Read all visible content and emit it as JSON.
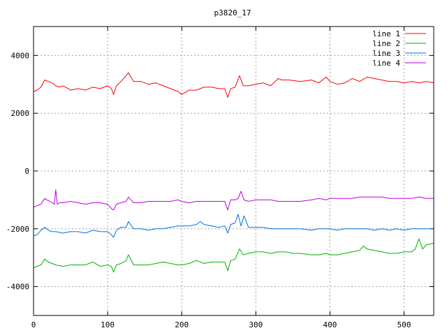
{
  "chart_data": {
    "type": "line",
    "title": "p3820_17",
    "xlabel": "",
    "ylabel": "",
    "xlim": [
      0,
      540
    ],
    "ylim": [
      -5000,
      5000
    ],
    "x_ticks": [
      0,
      100,
      200,
      300,
      400,
      500
    ],
    "y_ticks": [
      -4000,
      -2000,
      0,
      2000,
      4000
    ],
    "grid": true,
    "legend_position": "top-right",
    "series": [
      {
        "name": "line 1",
        "color": "#ff0000",
        "x": [
          0,
          5,
          10,
          15,
          20,
          25,
          30,
          35,
          40,
          50,
          60,
          70,
          80,
          90,
          100,
          105,
          108,
          112,
          118,
          125,
          128,
          135,
          145,
          155,
          165,
          175,
          185,
          195,
          200,
          210,
          220,
          230,
          240,
          250,
          258,
          262,
          266,
          272,
          278,
          283,
          290,
          300,
          310,
          320,
          330,
          335,
          345,
          360,
          375,
          385,
          395,
          400,
          410,
          420,
          430,
          440,
          450,
          460,
          470,
          480,
          490,
          500,
          510,
          520,
          530,
          540
        ],
        "y": [
          2750,
          2800,
          2900,
          3150,
          3100,
          3050,
          2950,
          2900,
          2950,
          2800,
          2850,
          2800,
          2900,
          2850,
          2950,
          2850,
          2650,
          2950,
          3100,
          3300,
          3400,
          3100,
          3100,
          3000,
          3050,
          2950,
          2850,
          2750,
          2650,
          2800,
          2800,
          2900,
          2900,
          2850,
          2850,
          2550,
          2850,
          2900,
          3300,
          2950,
          2950,
          3000,
          3050,
          2950,
          3200,
          3150,
          3150,
          3100,
          3150,
          3050,
          3250,
          3100,
          3000,
          3050,
          3200,
          3100,
          3250,
          3200,
          3150,
          3100,
          3100,
          3050,
          3100,
          3050,
          3100,
          3050
        ]
      },
      {
        "name": "line 2",
        "color": "#00b000",
        "x": [
          0,
          5,
          10,
          15,
          20,
          25,
          30,
          40,
          50,
          60,
          70,
          80,
          90,
          100,
          105,
          108,
          112,
          118,
          125,
          128,
          135,
          145,
          155,
          165,
          175,
          185,
          195,
          200,
          210,
          220,
          230,
          240,
          250,
          258,
          262,
          266,
          272,
          278,
          283,
          290,
          300,
          310,
          320,
          330,
          340,
          350,
          360,
          375,
          385,
          395,
          400,
          410,
          420,
          430,
          440,
          445,
          450,
          460,
          470,
          480,
          490,
          500,
          510,
          515,
          520,
          525,
          530,
          540
        ],
        "y": [
          -3350,
          -3300,
          -3250,
          -3050,
          -3150,
          -3200,
          -3250,
          -3300,
          -3250,
          -3250,
          -3250,
          -3150,
          -3300,
          -3250,
          -3300,
          -3500,
          -3250,
          -3200,
          -3100,
          -2900,
          -3250,
          -3250,
          -3250,
          -3200,
          -3150,
          -3200,
          -3250,
          -3250,
          -3200,
          -3100,
          -3200,
          -3150,
          -3150,
          -3150,
          -3450,
          -3100,
          -3050,
          -2700,
          -2900,
          -2850,
          -2800,
          -2800,
          -2850,
          -2800,
          -2800,
          -2850,
          -2850,
          -2900,
          -2900,
          -2850,
          -2900,
          -2900,
          -2850,
          -2800,
          -2750,
          -2600,
          -2700,
          -2750,
          -2800,
          -2850,
          -2850,
          -2800,
          -2800,
          -2700,
          -2350,
          -2700,
          -2550,
          -2500
        ]
      },
      {
        "name": "line 3",
        "color": "#0070e0",
        "x": [
          0,
          5,
          10,
          15,
          20,
          25,
          30,
          40,
          50,
          60,
          70,
          80,
          90,
          100,
          105,
          108,
          112,
          118,
          125,
          128,
          135,
          145,
          155,
          165,
          175,
          185,
          195,
          200,
          210,
          220,
          225,
          230,
          240,
          250,
          258,
          262,
          266,
          272,
          276,
          280,
          284,
          290,
          300,
          310,
          320,
          330,
          340,
          350,
          360,
          375,
          385,
          395,
          400,
          410,
          420,
          430,
          440,
          450,
          460,
          470,
          480,
          490,
          500,
          510,
          520,
          530,
          540
        ],
        "y": [
          -2250,
          -2200,
          -2050,
          -1950,
          -2050,
          -2100,
          -2100,
          -2150,
          -2100,
          -2100,
          -2150,
          -2050,
          -2100,
          -2100,
          -2200,
          -2300,
          -2050,
          -1950,
          -1950,
          -1750,
          -2000,
          -2000,
          -2050,
          -2000,
          -2000,
          -1950,
          -1900,
          -1900,
          -1900,
          -1850,
          -1750,
          -1850,
          -1900,
          -1950,
          -1900,
          -2150,
          -1850,
          -1800,
          -1500,
          -1900,
          -1550,
          -1950,
          -1950,
          -1950,
          -2000,
          -2000,
          -2000,
          -2000,
          -2000,
          -2050,
          -2000,
          -2000,
          -2000,
          -2050,
          -2000,
          -2000,
          -2000,
          -2000,
          -2050,
          -2000,
          -2050,
          -2000,
          -2050,
          -2000,
          -2000,
          -2000,
          -2000
        ]
      },
      {
        "name": "line 4",
        "color": "#c000e0",
        "x": [
          0,
          5,
          10,
          15,
          18,
          22,
          25,
          28,
          30,
          32,
          35,
          40,
          50,
          60,
          70,
          80,
          90,
          100,
          105,
          108,
          112,
          118,
          125,
          128,
          135,
          145,
          155,
          165,
          175,
          185,
          195,
          200,
          210,
          220,
          230,
          240,
          250,
          258,
          262,
          266,
          272,
          276,
          280,
          284,
          290,
          300,
          310,
          320,
          330,
          340,
          350,
          360,
          375,
          385,
          395,
          400,
          410,
          420,
          430,
          440,
          450,
          460,
          470,
          480,
          490,
          500,
          510,
          520,
          530,
          540
        ],
        "y": [
          -1250,
          -1200,
          -1150,
          -950,
          -1000,
          -1050,
          -1100,
          -1150,
          -650,
          -1150,
          -1100,
          -1100,
          -1050,
          -1100,
          -1150,
          -1100,
          -1100,
          -1150,
          -1300,
          -1350,
          -1150,
          -1100,
          -1050,
          -900,
          -1100,
          -1100,
          -1050,
          -1050,
          -1050,
          -1050,
          -1000,
          -1050,
          -1100,
          -1050,
          -1050,
          -1050,
          -1050,
          -1050,
          -1350,
          -1000,
          -1000,
          -950,
          -700,
          -1000,
          -1050,
          -1000,
          -1000,
          -1000,
          -1050,
          -1050,
          -1050,
          -1050,
          -1000,
          -950,
          -1000,
          -950,
          -950,
          -950,
          -950,
          -900,
          -900,
          -900,
          -900,
          -950,
          -950,
          -950,
          -950,
          -900,
          -950,
          -950
        ]
      }
    ]
  }
}
